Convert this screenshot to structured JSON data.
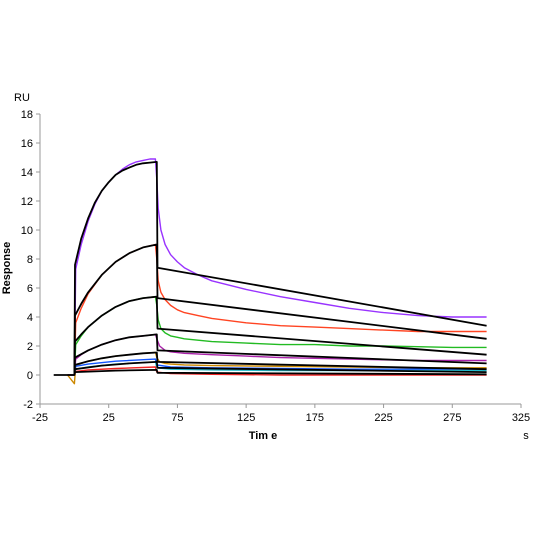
{
  "chart_data": {
    "type": "line",
    "title": "",
    "xlabel": "Tim e",
    "ylabel": "Response",
    "x_unit": "s",
    "y_unit": "RU",
    "xlim": [
      -25,
      325
    ],
    "ylim": [
      -2,
      18
    ],
    "x_ticks": [
      -25,
      25,
      75,
      125,
      175,
      225,
      275,
      325
    ],
    "y_ticks": [
      -2,
      0,
      2,
      4,
      6,
      8,
      10,
      12,
      14,
      16,
      18
    ],
    "grid": false,
    "legend": "none",
    "series": [
      {
        "color": "#9933ff",
        "x": [
          -5,
          0,
          1,
          5,
          10,
          15,
          20,
          25,
          30,
          35,
          40,
          45,
          50,
          55,
          59,
          60,
          61,
          63,
          66,
          70,
          75,
          80,
          90,
          100,
          125,
          150,
          175,
          200,
          225,
          250,
          275,
          300
        ],
        "y": [
          0,
          0,
          7.3,
          9.0,
          10.6,
          11.8,
          12.7,
          13.3,
          13.8,
          14.2,
          14.5,
          14.7,
          14.8,
          14.9,
          14.9,
          13.5,
          11.5,
          10.0,
          9.0,
          8.3,
          7.8,
          7.4,
          6.9,
          6.5,
          5.9,
          5.4,
          5.0,
          4.6,
          4.3,
          4.1,
          4.0,
          4.0
        ]
      },
      {
        "color": "#ff4422",
        "x": [
          -5,
          0,
          1,
          5,
          10,
          20,
          30,
          40,
          50,
          59,
          60,
          61,
          63,
          66,
          70,
          75,
          80,
          90,
          100,
          125,
          150,
          175,
          200,
          225,
          250,
          275,
          300
        ],
        "y": [
          0,
          0,
          3.6,
          4.6,
          5.6,
          6.9,
          7.8,
          8.4,
          8.8,
          9.0,
          8.0,
          6.5,
          5.7,
          5.2,
          4.8,
          4.5,
          4.3,
          4.1,
          3.9,
          3.6,
          3.4,
          3.3,
          3.2,
          3.1,
          3.0,
          3.0,
          3.0
        ]
      },
      {
        "color": "#22bb22",
        "x": [
          -5,
          0,
          1,
          5,
          10,
          20,
          30,
          40,
          50,
          59,
          60,
          61,
          63,
          66,
          70,
          75,
          80,
          90,
          100,
          125,
          150,
          175,
          200,
          225,
          250,
          275,
          300
        ],
        "y": [
          0,
          0,
          2.1,
          2.7,
          3.3,
          4.1,
          4.7,
          5.1,
          5.3,
          5.4,
          4.8,
          3.8,
          3.2,
          2.9,
          2.7,
          2.6,
          2.5,
          2.4,
          2.3,
          2.2,
          2.1,
          2.1,
          2.0,
          2.0,
          1.95,
          1.9,
          1.9
        ]
      },
      {
        "color": "#aa22aa",
        "x": [
          -5,
          0,
          1,
          5,
          10,
          20,
          30,
          40,
          50,
          59,
          60,
          62,
          66,
          70,
          80,
          100,
          125,
          150,
          175,
          200,
          225,
          250,
          275,
          300
        ],
        "y": [
          0,
          0,
          1.1,
          1.4,
          1.7,
          2.1,
          2.4,
          2.6,
          2.7,
          2.8,
          2.5,
          2.0,
          1.7,
          1.6,
          1.5,
          1.4,
          1.3,
          1.2,
          1.15,
          1.1,
          1.05,
          1.0,
          1.0,
          1.0
        ]
      },
      {
        "color": "#cc8800",
        "x": [
          -5,
          0,
          1,
          5,
          10,
          20,
          30,
          40,
          50,
          59,
          60,
          62,
          66,
          70,
          80,
          100,
          150,
          200,
          250,
          300
        ],
        "y": [
          0,
          -0.6,
          0.6,
          0.8,
          0.95,
          1.15,
          1.3,
          1.4,
          1.5,
          1.55,
          1.2,
          0.9,
          0.8,
          0.75,
          0.7,
          0.65,
          0.6,
          0.55,
          0.5,
          0.5
        ]
      },
      {
        "color": "#1155ff",
        "x": [
          -5,
          0,
          1,
          10,
          30,
          59,
          60,
          70,
          100,
          150,
          200,
          250,
          300
        ],
        "y": [
          0,
          0,
          0.6,
          0.75,
          0.95,
          1.1,
          0.7,
          0.55,
          0.5,
          0.45,
          0.4,
          0.4,
          0.4
        ]
      },
      {
        "color": "#22bbcc",
        "x": [
          -5,
          0,
          1,
          10,
          30,
          59,
          60,
          70,
          100,
          150,
          200,
          250,
          300
        ],
        "y": [
          0,
          0,
          0.4,
          0.55,
          0.75,
          0.9,
          0.5,
          0.4,
          0.35,
          0.3,
          0.3,
          0.3,
          0.3
        ]
      },
      {
        "color": "#ee2222",
        "x": [
          -5,
          0,
          1,
          10,
          30,
          59,
          60,
          70,
          100,
          150,
          200,
          250,
          300
        ],
        "y": [
          0,
          0,
          0.25,
          0.35,
          0.45,
          0.55,
          0.2,
          0.1,
          0.05,
          0.0,
          0.0,
          0.0,
          0.0
        ]
      },
      {
        "color": "#000000",
        "x": [
          0,
          0.5,
          5,
          10,
          15,
          20,
          25,
          30,
          35,
          40,
          45,
          50,
          55,
          60,
          60.5,
          300
        ],
        "y": [
          0,
          7.6,
          9.4,
          10.8,
          11.9,
          12.7,
          13.3,
          13.8,
          14.1,
          14.3,
          14.5,
          14.6,
          14.65,
          14.7,
          7.4,
          3.4
        ]
      },
      {
        "color": "#000000",
        "x": [
          0,
          0.5,
          5,
          10,
          20,
          30,
          40,
          50,
          60,
          60.5,
          300
        ],
        "y": [
          0,
          4.1,
          4.9,
          5.7,
          6.9,
          7.8,
          8.4,
          8.8,
          9.0,
          5.3,
          2.5
        ]
      },
      {
        "color": "#000000",
        "x": [
          0,
          0.5,
          5,
          10,
          20,
          30,
          40,
          50,
          60,
          60.5,
          300
        ],
        "y": [
          0,
          2.3,
          2.8,
          3.3,
          4.1,
          4.7,
          5.1,
          5.3,
          5.4,
          3.2,
          1.4
        ]
      },
      {
        "color": "#000000",
        "x": [
          0,
          0.5,
          10,
          20,
          30,
          40,
          50,
          60,
          60.5,
          300
        ],
        "y": [
          0,
          1.2,
          1.7,
          2.1,
          2.4,
          2.6,
          2.7,
          2.8,
          1.7,
          0.8
        ]
      },
      {
        "color": "#000000",
        "x": [
          0,
          0.5,
          10,
          20,
          30,
          40,
          50,
          60,
          60.5,
          300
        ],
        "y": [
          0,
          0.7,
          0.95,
          1.15,
          1.3,
          1.4,
          1.5,
          1.55,
          0.9,
          0.4
        ]
      },
      {
        "color": "#000000",
        "x": [
          0,
          0.5,
          20,
          40,
          60,
          60.5,
          300
        ],
        "y": [
          0,
          0.4,
          0.65,
          0.8,
          0.9,
          0.5,
          0.2
        ]
      },
      {
        "color": "#000000",
        "x": [
          -15,
          0,
          0.5,
          30,
          60,
          60.5,
          300
        ],
        "y": [
          0,
          0,
          0.2,
          0.3,
          0.35,
          0.15,
          0.05
        ]
      }
    ]
  }
}
